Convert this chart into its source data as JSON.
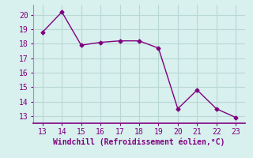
{
  "x": [
    13,
    14,
    15,
    16,
    17,
    18,
    19,
    20,
    21,
    22,
    23
  ],
  "y": [
    18.8,
    20.2,
    17.9,
    18.1,
    18.2,
    18.2,
    17.7,
    13.5,
    14.8,
    13.5,
    12.9
  ],
  "line_color": "#800080",
  "marker": "D",
  "marker_size": 2.5,
  "line_width": 1.0,
  "bg_color": "#d8f0ee",
  "grid_color": "#b8d8d4",
  "spine_color": "#999999",
  "bottom_spine_color": "#800080",
  "xlabel": "Windchill (Refroidissement éolien,°C)",
  "xlabel_color": "#800080",
  "xlabel_fontsize": 7,
  "tick_color": "#800080",
  "tick_fontsize": 7,
  "xlim": [
    12.5,
    23.5
  ],
  "ylim": [
    12.5,
    20.7
  ],
  "xticks": [
    13,
    14,
    15,
    16,
    17,
    18,
    19,
    20,
    21,
    22,
    23
  ],
  "yticks": [
    13,
    14,
    15,
    16,
    17,
    18,
    19,
    20
  ]
}
